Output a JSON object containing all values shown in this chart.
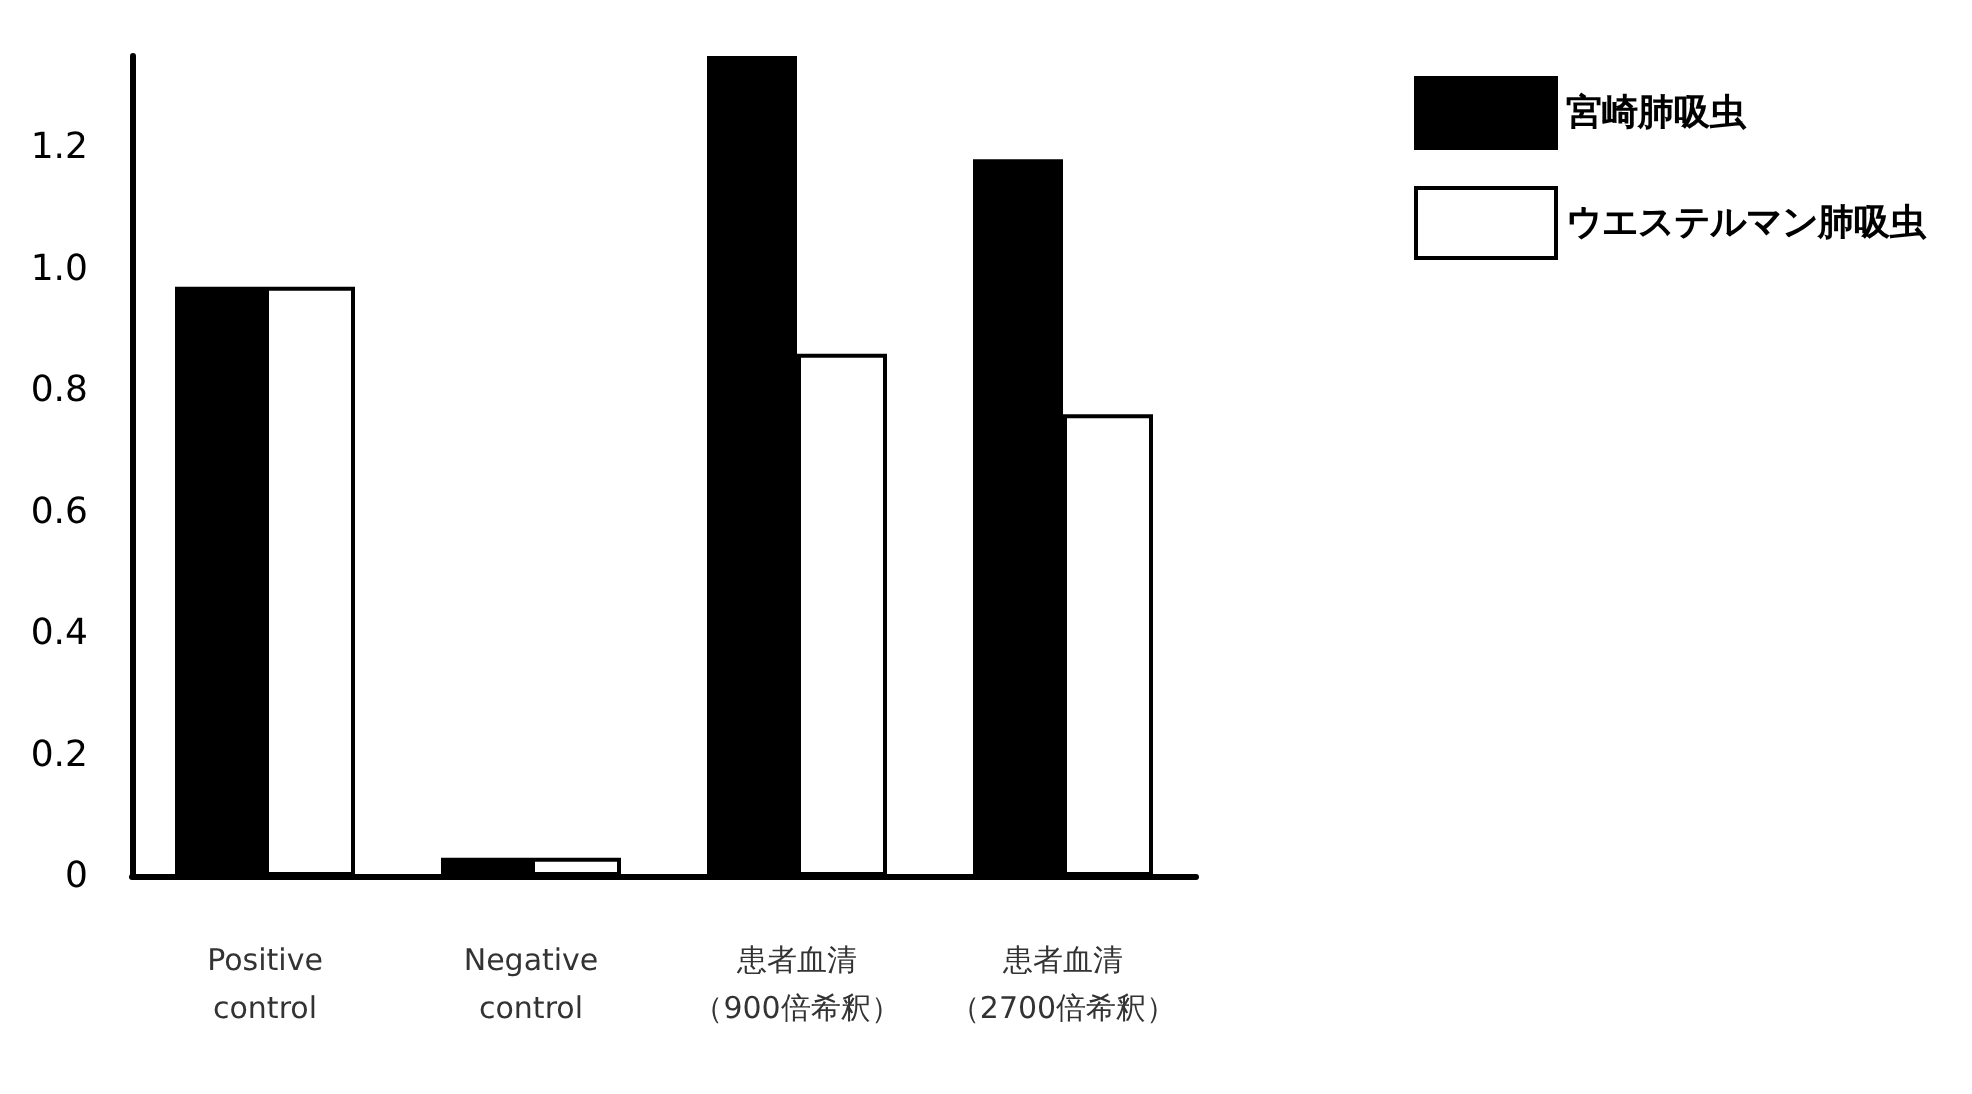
{
  "chart_data": {
    "type": "bar",
    "categories": [
      "Positive\ncontrol",
      "Negative\ncontrol",
      "患者血清（900倍希釈）",
      "患者血清（2700倍希釈）"
    ],
    "series": [
      {
        "name": "宮崎肺吸虫",
        "color": "#000000",
        "values": [
          0.97,
          0.03,
          1.35,
          1.18
        ]
      },
      {
        "name": "ウエステルマン肺吸虫",
        "color": "#ffffff",
        "values": [
          0.97,
          0.03,
          0.86,
          0.76
        ]
      }
    ],
    "ylim": [
      0,
      1.35
    ],
    "yticks": [
      0,
      0.2,
      0.4,
      0.6,
      0.8,
      {
        "value": 1,
        "label": "1.0"
      },
      1.2
    ],
    "grid": false,
    "legend": "top right"
  }
}
